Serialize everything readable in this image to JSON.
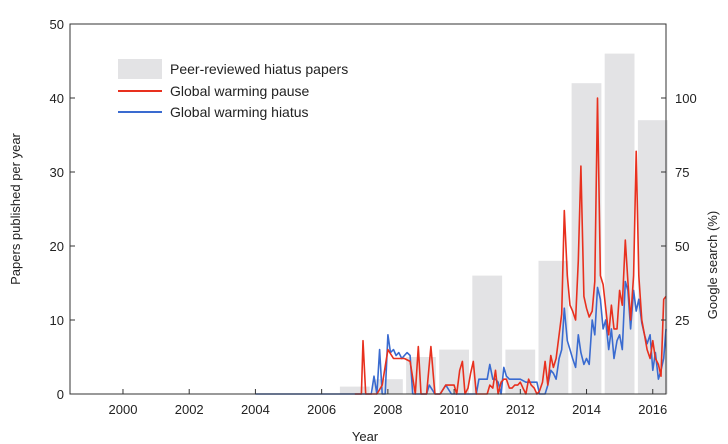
{
  "chart_data": {
    "type": "bar",
    "xlabel": "Year",
    "ylabel": "Papers published per year",
    "y2label": "Google search (%)",
    "xlim": [
      1998.4,
      2016.4
    ],
    "ylim": [
      0,
      50
    ],
    "y2lim": [
      0,
      125
    ],
    "grid": false,
    "legend_position": "top-left",
    "x_ticks": [
      "2000",
      "2002",
      "2004",
      "2006",
      "2008",
      "2010",
      "2012",
      "2014",
      "2016"
    ],
    "y_ticks": [
      "0",
      "10",
      "20",
      "30",
      "40",
      "50"
    ],
    "y2_ticks": [
      "25",
      "50",
      "75",
      "100"
    ],
    "colors": {
      "bars": "#e3e3e5",
      "pause": "#e8301e",
      "hiatus": "#3a6bd0",
      "axis": "#333333"
    },
    "bars": {
      "name": "Peer-reviewed hiatus papers",
      "years": [
        2007,
        2008,
        2009,
        2010,
        2011,
        2012,
        2013,
        2014,
        2015,
        2016
      ],
      "values": [
        1,
        2,
        5,
        6,
        16,
        6,
        18,
        42,
        46,
        37
      ]
    },
    "series": [
      {
        "name": "Global warming pause",
        "axis": "right",
        "points": [
          [
            2007.0,
            0
          ],
          [
            2007.2,
            0
          ],
          [
            2007.25,
            18
          ],
          [
            2007.33,
            0
          ],
          [
            2007.5,
            0
          ],
          [
            2007.67,
            0
          ],
          [
            2007.83,
            3
          ],
          [
            2008.0,
            15
          ],
          [
            2008.17,
            12
          ],
          [
            2008.33,
            12
          ],
          [
            2008.5,
            12
          ],
          [
            2008.67,
            11
          ],
          [
            2008.83,
            0
          ],
          [
            2008.92,
            16
          ],
          [
            2009.0,
            0
          ],
          [
            2009.17,
            0
          ],
          [
            2009.3,
            16
          ],
          [
            2009.42,
            0
          ],
          [
            2009.58,
            0
          ],
          [
            2009.75,
            3
          ],
          [
            2009.92,
            3
          ],
          [
            2010.0,
            3
          ],
          [
            2010.08,
            0
          ],
          [
            2010.17,
            8
          ],
          [
            2010.25,
            11
          ],
          [
            2010.33,
            0
          ],
          [
            2010.42,
            2
          ],
          [
            2010.5,
            7
          ],
          [
            2010.58,
            11
          ],
          [
            2010.67,
            0
          ],
          [
            2010.83,
            0
          ],
          [
            2010.92,
            0
          ],
          [
            2011.0,
            0
          ],
          [
            2011.08,
            3
          ],
          [
            2011.17,
            2
          ],
          [
            2011.25,
            8
          ],
          [
            2011.33,
            0
          ],
          [
            2011.42,
            4
          ],
          [
            2011.5,
            5
          ],
          [
            2011.58,
            5
          ],
          [
            2011.67,
            2
          ],
          [
            2011.75,
            2
          ],
          [
            2011.83,
            3
          ],
          [
            2011.92,
            3
          ],
          [
            2012.0,
            4
          ],
          [
            2012.08,
            2
          ],
          [
            2012.17,
            0
          ],
          [
            2012.25,
            5
          ],
          [
            2012.33,
            3
          ],
          [
            2012.42,
            2
          ],
          [
            2012.5,
            0
          ],
          [
            2012.58,
            1
          ],
          [
            2012.67,
            4
          ],
          [
            2012.75,
            11
          ],
          [
            2012.83,
            3
          ],
          [
            2012.92,
            13
          ],
          [
            2013.0,
            9
          ],
          [
            2013.08,
            12
          ],
          [
            2013.17,
            20
          ],
          [
            2013.25,
            27
          ],
          [
            2013.33,
            62
          ],
          [
            2013.42,
            40
          ],
          [
            2013.5,
            30
          ],
          [
            2013.58,
            28
          ],
          [
            2013.67,
            25
          ],
          [
            2013.75,
            45
          ],
          [
            2013.83,
            77
          ],
          [
            2013.92,
            33
          ],
          [
            2014.0,
            29
          ],
          [
            2014.08,
            26
          ],
          [
            2014.17,
            28
          ],
          [
            2014.25,
            38
          ],
          [
            2014.33,
            100
          ],
          [
            2014.42,
            40
          ],
          [
            2014.5,
            37
          ],
          [
            2014.58,
            29
          ],
          [
            2014.67,
            20
          ],
          [
            2014.75,
            30
          ],
          [
            2014.83,
            22
          ],
          [
            2014.92,
            22
          ],
          [
            2015.0,
            35
          ],
          [
            2015.08,
            30
          ],
          [
            2015.17,
            52
          ],
          [
            2015.25,
            38
          ],
          [
            2015.33,
            25
          ],
          [
            2015.42,
            40
          ],
          [
            2015.5,
            82
          ],
          [
            2015.58,
            40
          ],
          [
            2015.67,
            25
          ],
          [
            2015.75,
            20
          ],
          [
            2015.83,
            15
          ],
          [
            2015.92,
            12
          ],
          [
            2016.0,
            18
          ],
          [
            2016.08,
            12
          ],
          [
            2016.17,
            10
          ],
          [
            2016.25,
            6
          ],
          [
            2016.33,
            32
          ],
          [
            2016.4,
            33
          ]
        ]
      },
      {
        "name": "Global warming hiatus",
        "axis": "right",
        "points": [
          [
            2004.0,
            0
          ],
          [
            2007.5,
            0
          ],
          [
            2007.58,
            6
          ],
          [
            2007.67,
            0
          ],
          [
            2007.75,
            15
          ],
          [
            2007.83,
            0
          ],
          [
            2007.92,
            0
          ],
          [
            2008.0,
            20
          ],
          [
            2008.08,
            14
          ],
          [
            2008.17,
            15
          ],
          [
            2008.25,
            13
          ],
          [
            2008.33,
            14
          ],
          [
            2008.42,
            12
          ],
          [
            2008.5,
            13
          ],
          [
            2008.58,
            14
          ],
          [
            2008.67,
            13
          ],
          [
            2008.75,
            0
          ],
          [
            2008.92,
            0
          ],
          [
            2009.17,
            0
          ],
          [
            2009.25,
            3
          ],
          [
            2009.42,
            0
          ],
          [
            2009.58,
            0
          ],
          [
            2009.75,
            3
          ],
          [
            2009.92,
            0
          ],
          [
            2010.0,
            0
          ],
          [
            2010.5,
            0
          ],
          [
            2010.67,
            0
          ],
          [
            2010.75,
            5
          ],
          [
            2010.83,
            5
          ],
          [
            2011.0,
            5
          ],
          [
            2011.08,
            10
          ],
          [
            2011.17,
            5
          ],
          [
            2011.25,
            5
          ],
          [
            2011.33,
            4
          ],
          [
            2011.42,
            0
          ],
          [
            2011.5,
            9
          ],
          [
            2011.58,
            6
          ],
          [
            2011.67,
            5
          ],
          [
            2011.75,
            5
          ],
          [
            2011.83,
            5
          ],
          [
            2012.0,
            5
          ],
          [
            2012.17,
            4
          ],
          [
            2012.33,
            4
          ],
          [
            2012.5,
            4
          ],
          [
            2012.58,
            0
          ],
          [
            2012.75,
            0
          ],
          [
            2012.83,
            3
          ],
          [
            2012.92,
            8
          ],
          [
            2013.0,
            7
          ],
          [
            2013.08,
            5
          ],
          [
            2013.17,
            12
          ],
          [
            2013.25,
            15
          ],
          [
            2013.33,
            29
          ],
          [
            2013.42,
            18
          ],
          [
            2013.5,
            15
          ],
          [
            2013.58,
            12
          ],
          [
            2013.67,
            9
          ],
          [
            2013.75,
            20
          ],
          [
            2013.83,
            14
          ],
          [
            2013.92,
            10
          ],
          [
            2014.0,
            12
          ],
          [
            2014.08,
            10
          ],
          [
            2014.17,
            25
          ],
          [
            2014.25,
            20
          ],
          [
            2014.33,
            36
          ],
          [
            2014.42,
            32
          ],
          [
            2014.5,
            22
          ],
          [
            2014.58,
            25
          ],
          [
            2014.67,
            15
          ],
          [
            2014.75,
            22
          ],
          [
            2014.83,
            12
          ],
          [
            2014.92,
            18
          ],
          [
            2015.0,
            20
          ],
          [
            2015.08,
            15
          ],
          [
            2015.17,
            38
          ],
          [
            2015.25,
            35
          ],
          [
            2015.33,
            22
          ],
          [
            2015.42,
            35
          ],
          [
            2015.5,
            28
          ],
          [
            2015.58,
            32
          ],
          [
            2015.67,
            24
          ],
          [
            2015.75,
            20
          ],
          [
            2015.83,
            17
          ],
          [
            2015.92,
            20
          ],
          [
            2016.0,
            8
          ],
          [
            2016.08,
            14
          ],
          [
            2016.17,
            5
          ],
          [
            2016.25,
            8
          ],
          [
            2016.33,
            12
          ],
          [
            2016.4,
            22
          ]
        ]
      }
    ]
  }
}
